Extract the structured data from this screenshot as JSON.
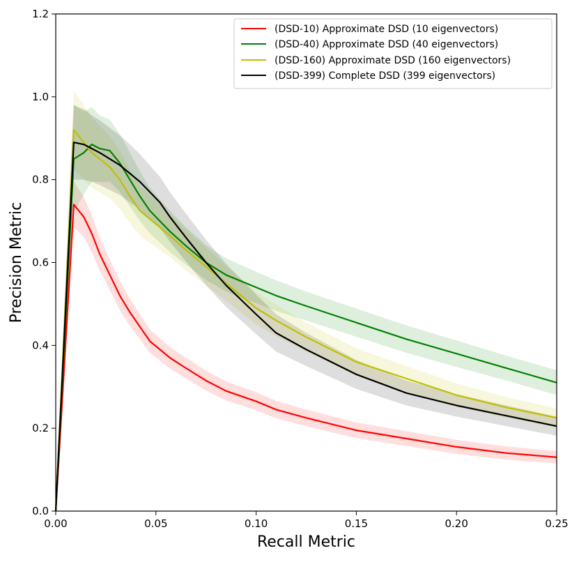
{
  "chart_data": {
    "type": "line",
    "title": "",
    "xlabel": "Recall Metric",
    "ylabel": "Precision Metric",
    "xlim": [
      0,
      0.25
    ],
    "ylim": [
      0,
      1.2
    ],
    "xticks": [
      "0.00",
      "0.05",
      "0.10",
      "0.15",
      "0.20",
      "0.25"
    ],
    "yticks": [
      "0.0",
      "0.2",
      "0.4",
      "0.6",
      "0.8",
      "1.0",
      "1.2"
    ],
    "legend_position": "top-right",
    "series": [
      {
        "name": "(DSD-10) Approximate DSD (10 eigenvectors)",
        "color": "#ff0000",
        "x": [
          0,
          0.009,
          0.014,
          0.018,
          0.022,
          0.027,
          0.032,
          0.037,
          0.042,
          0.047,
          0.052,
          0.057,
          0.065,
          0.075,
          0.085,
          0.1,
          0.11,
          0.125,
          0.15,
          0.175,
          0.2,
          0.225,
          0.25
        ],
        "y": [
          0,
          0.74,
          0.71,
          0.67,
          0.62,
          0.57,
          0.52,
          0.48,
          0.445,
          0.41,
          0.39,
          0.37,
          0.345,
          0.315,
          0.29,
          0.265,
          0.245,
          0.225,
          0.195,
          0.175,
          0.155,
          0.14,
          0.13
        ],
        "band": [
          0.035,
          0.055,
          0.048,
          0.045,
          0.04,
          0.037,
          0.035,
          0.033,
          0.03,
          0.028,
          0.027,
          0.026,
          0.025,
          0.024,
          0.023,
          0.022,
          0.021,
          0.02,
          0.019,
          0.018,
          0.017,
          0.016,
          0.015
        ]
      },
      {
        "name": "(DSD-40) Approximate DSD (40 eigenvectors)",
        "color": "#008000",
        "x": [
          0,
          0.009,
          0.014,
          0.018,
          0.022,
          0.027,
          0.032,
          0.037,
          0.042,
          0.047,
          0.052,
          0.057,
          0.065,
          0.075,
          0.085,
          0.1,
          0.11,
          0.125,
          0.15,
          0.175,
          0.2,
          0.225,
          0.25
        ],
        "y": [
          0,
          0.85,
          0.865,
          0.885,
          0.875,
          0.87,
          0.84,
          0.8,
          0.76,
          0.725,
          0.7,
          0.675,
          0.64,
          0.6,
          0.57,
          0.54,
          0.52,
          0.495,
          0.455,
          0.415,
          0.38,
          0.345,
          0.31
        ],
        "band": [
          0.04,
          0.13,
          0.1,
          0.09,
          0.08,
          0.075,
          0.07,
          0.065,
          0.06,
          0.055,
          0.052,
          0.05,
          0.045,
          0.042,
          0.04,
          0.038,
          0.037,
          0.035,
          0.034,
          0.033,
          0.032,
          0.03,
          0.03
        ]
      },
      {
        "name": "(DSD-160) Approximate DSD (160 eigenvectors)",
        "color": "#bfbf00",
        "x": [
          0,
          0.009,
          0.014,
          0.018,
          0.022,
          0.027,
          0.032,
          0.037,
          0.042,
          0.047,
          0.052,
          0.057,
          0.065,
          0.075,
          0.085,
          0.1,
          0.11,
          0.125,
          0.15,
          0.175,
          0.2,
          0.225,
          0.25
        ],
        "y": [
          0,
          0.92,
          0.89,
          0.865,
          0.85,
          0.83,
          0.8,
          0.76,
          0.725,
          0.705,
          0.685,
          0.665,
          0.63,
          0.59,
          0.55,
          0.49,
          0.46,
          0.42,
          0.36,
          0.32,
          0.28,
          0.25,
          0.225
        ],
        "band": [
          0.04,
          0.095,
          0.09,
          0.085,
          0.08,
          0.075,
          0.07,
          0.065,
          0.06,
          0.058,
          0.055,
          0.052,
          0.05,
          0.045,
          0.042,
          0.04,
          0.038,
          0.035,
          0.033,
          0.03,
          0.028,
          0.025,
          0.023
        ]
      },
      {
        "name": "(DSD-399) Complete DSD (399 eigenvectors)",
        "color": "#000000",
        "x": [
          0,
          0.009,
          0.014,
          0.018,
          0.022,
          0.027,
          0.032,
          0.037,
          0.042,
          0.047,
          0.052,
          0.057,
          0.065,
          0.075,
          0.085,
          0.1,
          0.11,
          0.125,
          0.15,
          0.175,
          0.2,
          0.225,
          0.25
        ],
        "y": [
          0,
          0.89,
          0.885,
          0.875,
          0.865,
          0.85,
          0.835,
          0.815,
          0.795,
          0.77,
          0.745,
          0.71,
          0.66,
          0.6,
          0.545,
          0.475,
          0.43,
          0.39,
          0.33,
          0.285,
          0.255,
          0.23,
          0.205
        ],
        "band": [
          0.04,
          0.09,
          0.085,
          0.08,
          0.078,
          0.075,
          0.072,
          0.07,
          0.067,
          0.064,
          0.062,
          0.06,
          0.058,
          0.055,
          0.052,
          0.048,
          0.045,
          0.04,
          0.035,
          0.03,
          0.027,
          0.025,
          0.023
        ]
      }
    ]
  }
}
